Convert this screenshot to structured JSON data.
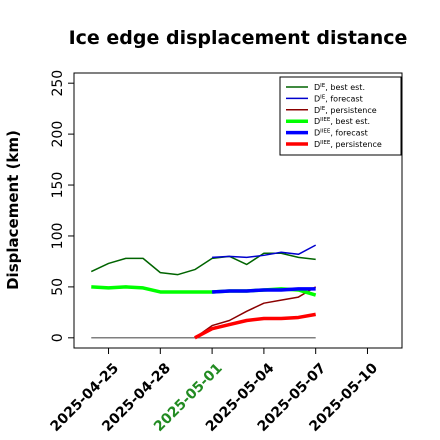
{
  "chart_data": {
    "type": "line",
    "title": "Ice edge displacement distance",
    "xlabel": "",
    "ylabel": "Displacement (km)",
    "xlim": [
      "2025-04-23",
      "2025-05-12"
    ],
    "ylim": [
      -10,
      260
    ],
    "yticks": [
      0,
      50,
      100,
      150,
      200,
      250
    ],
    "xticks": [
      "2025-04-25",
      "2025-04-28",
      "2025-05-01",
      "2025-05-04",
      "2025-05-07",
      "2025-05-10"
    ],
    "xtick_colors": [
      "#000000",
      "#000000",
      "#228b22",
      "#000000",
      "#000000",
      "#000000"
    ],
    "grid": false,
    "legend_position": "top-right",
    "baseline": {
      "x": [
        "2025-04-24",
        "2025-05-07"
      ],
      "y": [
        0,
        0
      ],
      "color": "#555555"
    },
    "series": [
      {
        "name": "D^IE, best est.",
        "sym": "D",
        "sup": "IE",
        "rest": ", best est.",
        "color": "#006400",
        "width": 1.5,
        "x": [
          "2025-04-24",
          "2025-04-25",
          "2025-04-26",
          "2025-04-27",
          "2025-04-28",
          "2025-04-29",
          "2025-04-30",
          "2025-05-01",
          "2025-05-02",
          "2025-05-03",
          "2025-05-04",
          "2025-05-05",
          "2025-05-06",
          "2025-05-07"
        ],
        "y": [
          65,
          73,
          78,
          78,
          64,
          62,
          67,
          78,
          80,
          72,
          83,
          83,
          79,
          77
        ]
      },
      {
        "name": "D^IE, forecast",
        "sym": "D",
        "sup": "IE",
        "rest": ", forecast",
        "color": "#0000cd",
        "width": 1.5,
        "x": [
          "2025-05-01",
          "2025-05-02",
          "2025-05-03",
          "2025-05-04",
          "2025-05-05",
          "2025-05-06",
          "2025-05-07"
        ],
        "y": [
          79,
          80,
          79,
          81,
          84,
          82,
          91
        ]
      },
      {
        "name": "D^IE, persistence",
        "sym": "D",
        "sup": "IE",
        "rest": ", persistence",
        "color": "#8b0000",
        "width": 1.5,
        "x": [
          "2025-04-30",
          "2025-05-01",
          "2025-05-02",
          "2025-05-03",
          "2025-05-04",
          "2025-05-05",
          "2025-05-06",
          "2025-05-07"
        ],
        "y": [
          0,
          12,
          17,
          26,
          34,
          37,
          40,
          50
        ]
      },
      {
        "name": "D^IIEE, best est.",
        "sym": "D",
        "sup": "IIEE",
        "rest": ", best est.",
        "color": "#00ff00",
        "width": 3.5,
        "x": [
          "2025-04-24",
          "2025-04-25",
          "2025-04-26",
          "2025-04-27",
          "2025-04-28",
          "2025-04-29",
          "2025-04-30",
          "2025-05-01",
          "2025-05-02",
          "2025-05-03",
          "2025-05-04",
          "2025-05-05",
          "2025-05-06",
          "2025-05-07"
        ],
        "y": [
          50,
          49,
          50,
          49,
          45,
          45,
          45,
          45,
          46,
          46,
          47,
          48,
          47,
          42
        ]
      },
      {
        "name": "D^IIEE, forecast",
        "sym": "D",
        "sup": "IIEE",
        "rest": ", forecast",
        "color": "#0000ff",
        "width": 3.5,
        "x": [
          "2025-05-01",
          "2025-05-02",
          "2025-05-03",
          "2025-05-04",
          "2025-05-05",
          "2025-05-06",
          "2025-05-07"
        ],
        "y": [
          45,
          46,
          46,
          47,
          47,
          48,
          48
        ]
      },
      {
        "name": "D^IIEE, persistence",
        "sym": "D",
        "sup": "IIEE",
        "rest": ", persistence",
        "color": "#ff0000",
        "width": 3.5,
        "x": [
          "2025-04-30",
          "2025-05-01",
          "2025-05-02",
          "2025-05-03",
          "2025-05-04",
          "2025-05-05",
          "2025-05-06",
          "2025-05-07"
        ],
        "y": [
          0,
          9,
          13,
          17,
          19,
          19,
          20,
          23
        ]
      }
    ]
  }
}
